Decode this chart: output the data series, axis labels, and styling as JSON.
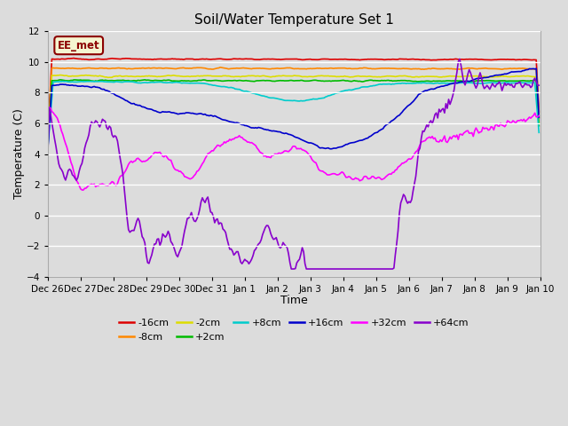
{
  "title": "Soil/Water Temperature Set 1",
  "xlabel": "Time",
  "ylabel": "Temperature (C)",
  "ylim": [
    -4,
    12
  ],
  "yticks": [
    -4,
    -2,
    0,
    2,
    4,
    6,
    8,
    10,
    12
  ],
  "plot_bg_color": "#dcdcdc",
  "fig_bg_color": "#dcdcdc",
  "legend_box_facecolor": "#f5f5d0",
  "legend_box_edgecolor": "#8b0000",
  "legend_label": "EE_met",
  "series": [
    {
      "label": "-16cm",
      "color": "#dd0000"
    },
    {
      "label": "-8cm",
      "color": "#ff8800"
    },
    {
      "label": "-2cm",
      "color": "#dddd00"
    },
    {
      "label": "+2cm",
      "color": "#00bb00"
    },
    {
      "label": "+8cm",
      "color": "#00cccc"
    },
    {
      "label": "+16cm",
      "color": "#0000cc"
    },
    {
      "label": "+32cm",
      "color": "#ff00ff"
    },
    {
      "label": "+64cm",
      "color": "#8800cc"
    }
  ],
  "num_points": 360,
  "date_labels": [
    "Dec 26",
    "Dec 27",
    "Dec 28",
    "Dec 29",
    "Dec 30",
    "Dec 31",
    "Jan 1",
    "Jan 2",
    "Jan 3",
    "Jan 4",
    "Jan 5",
    "Jan 6",
    "Jan 7",
    "Jan 8",
    "Jan 9",
    "Jan 10"
  ],
  "tick_hours": [
    0,
    24,
    48,
    72,
    96,
    120,
    144,
    168,
    192,
    216,
    240,
    264,
    288,
    312,
    336,
    360
  ]
}
